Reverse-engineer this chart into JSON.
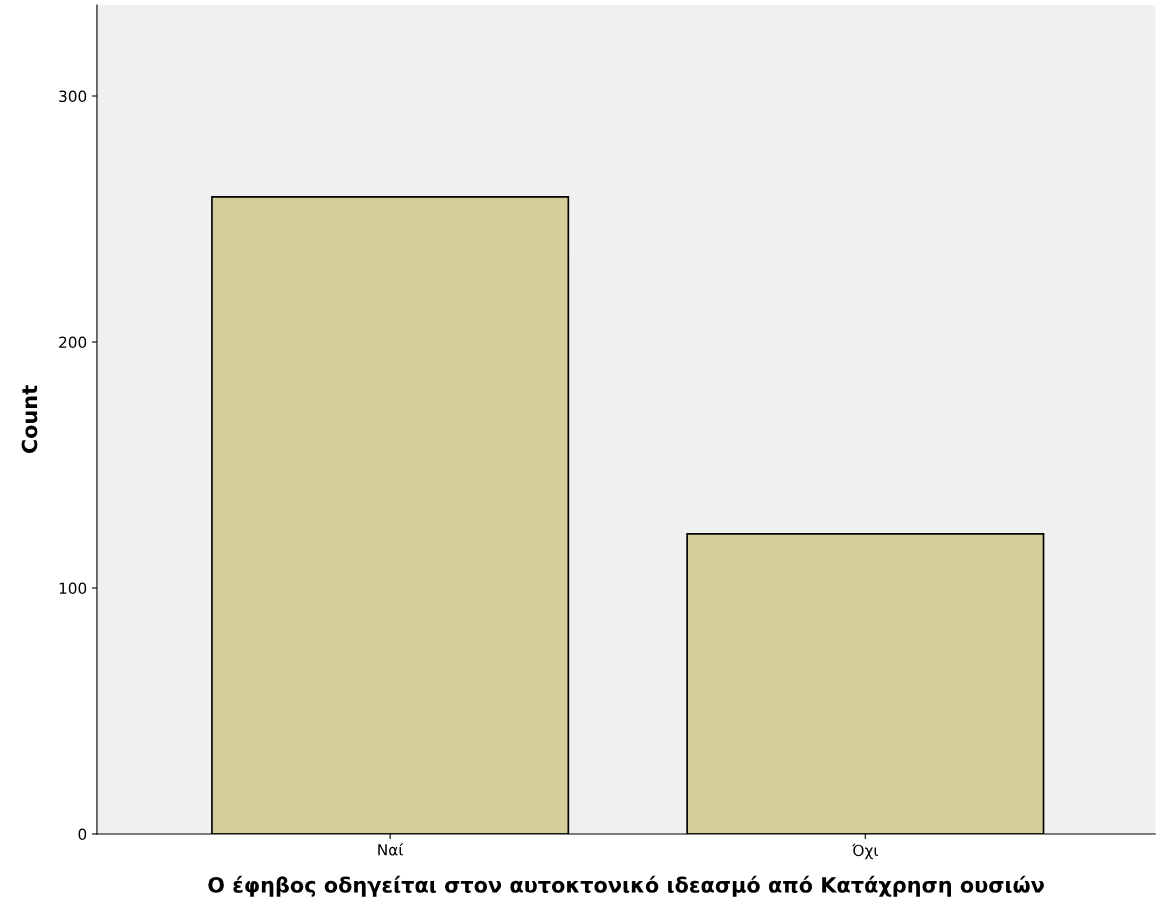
{
  "chart_data": {
    "type": "bar",
    "xlabel": "Ο έφηβος οδηγείται στον αυτοκτονικό ιδεασμό από Κατάχρηση ουσιών",
    "ylabel": "Count",
    "categories": [
      "Ναί",
      "Όχι"
    ],
    "values": [
      259,
      122
    ],
    "color": "#d3ce99",
    "ylim": [
      0,
      337
    ],
    "yticks": [
      0,
      100,
      200,
      300
    ],
    "grid": false
  }
}
